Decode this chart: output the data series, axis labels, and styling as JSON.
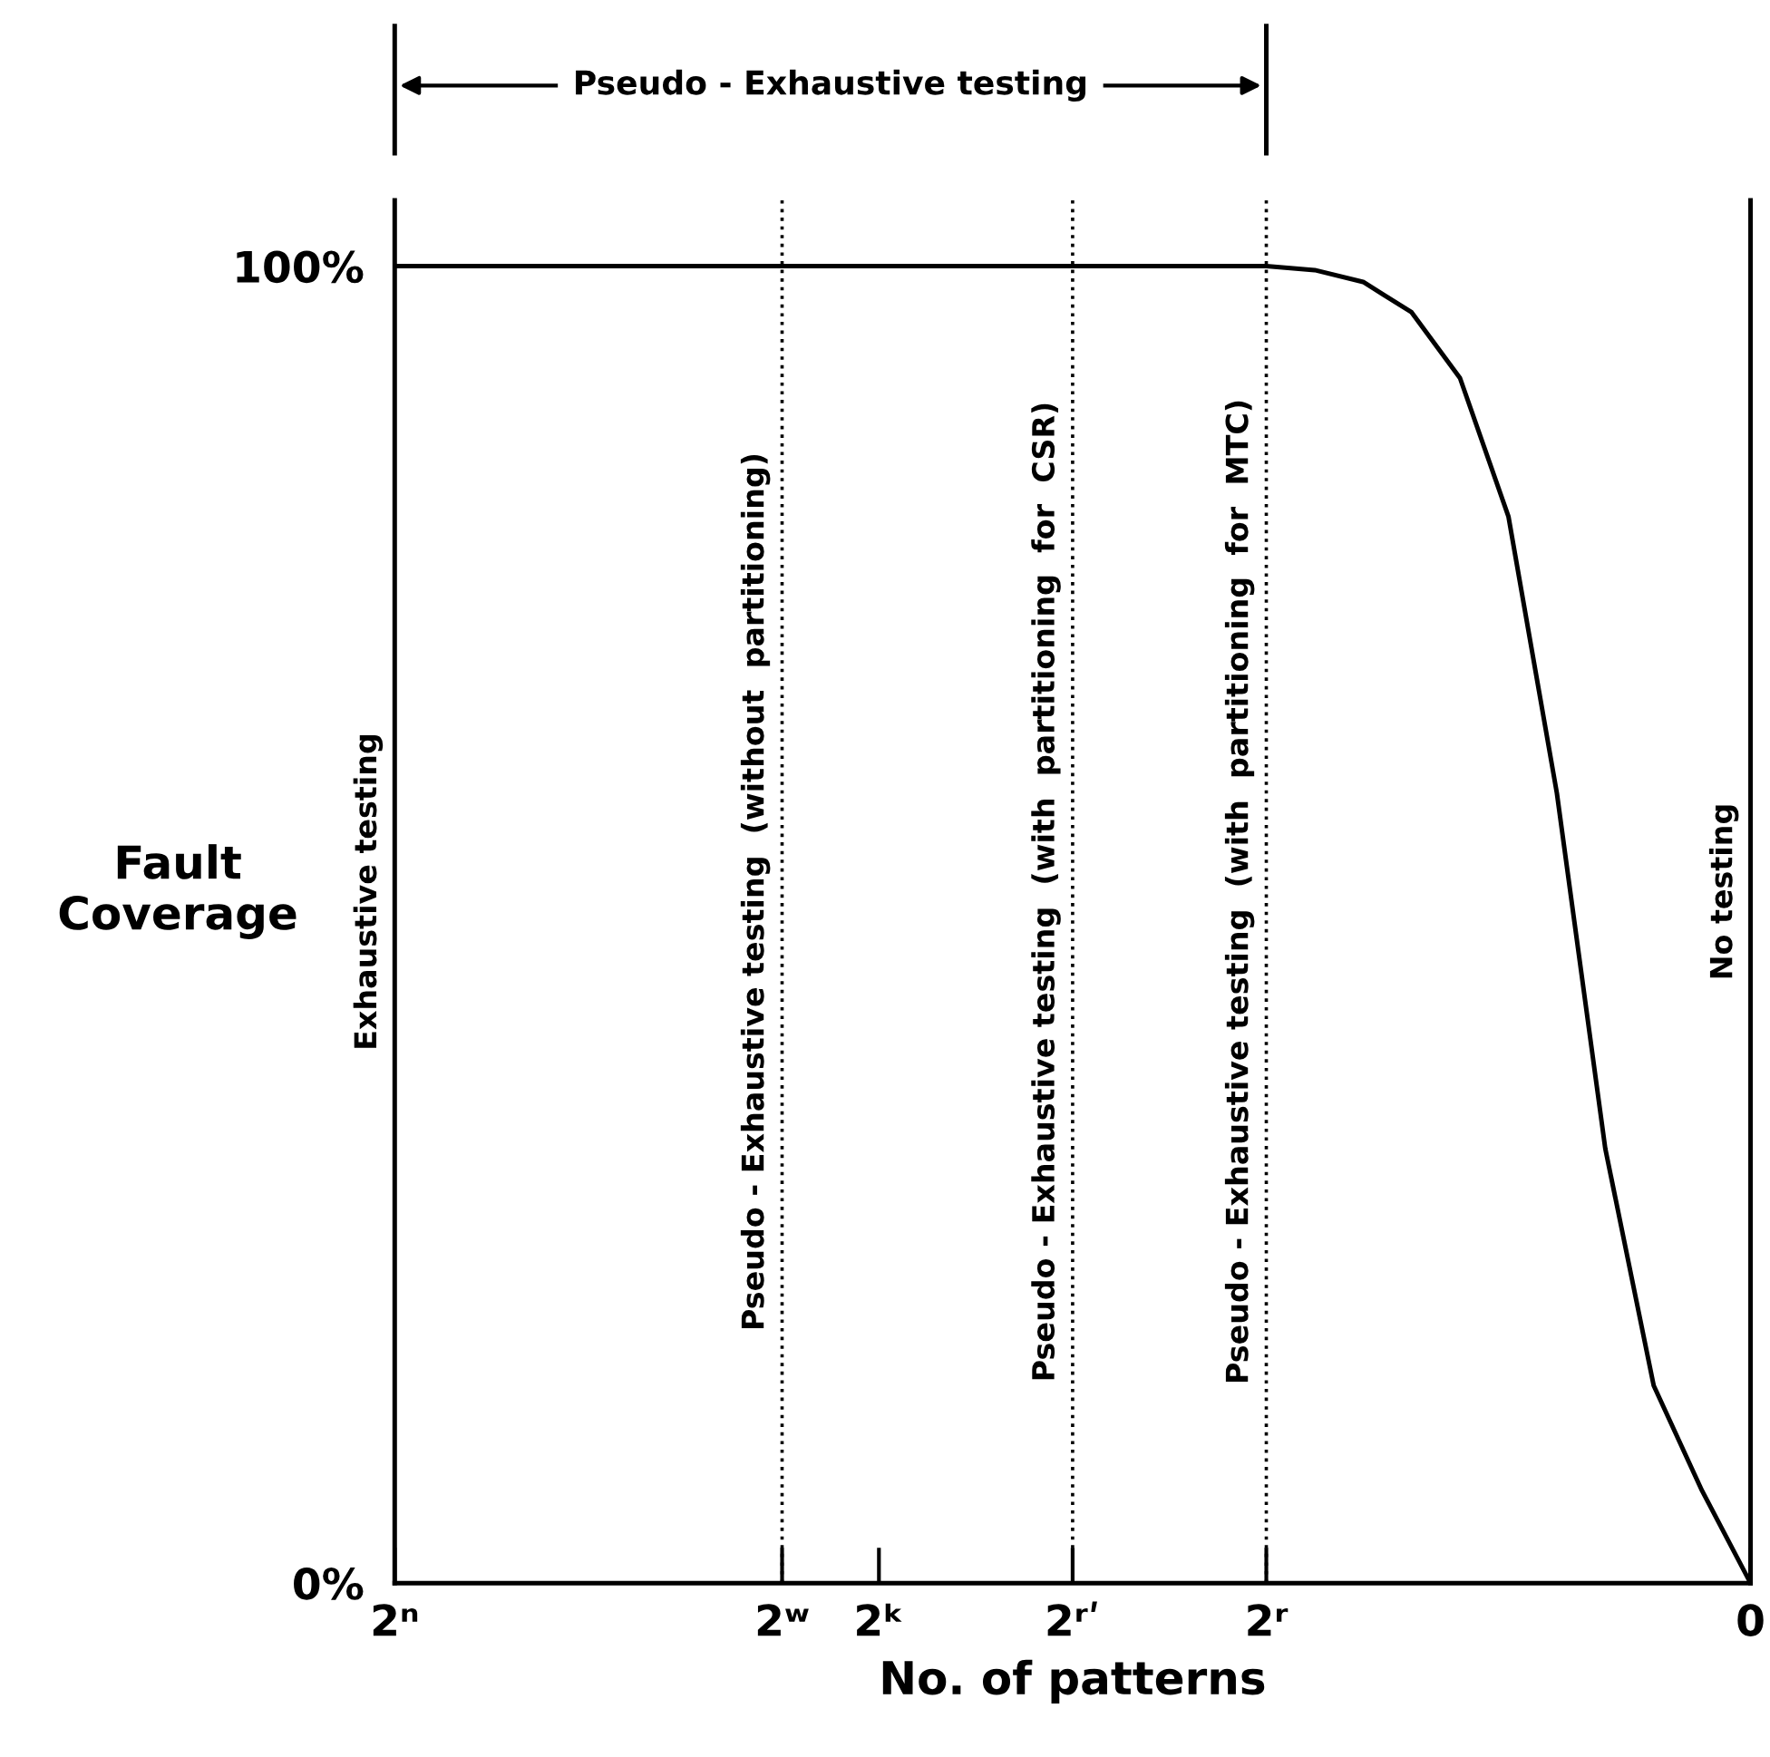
{
  "chart_data": {
    "type": "line",
    "xlabel": "No. of patterns",
    "ylabel": "Fault\nCoverage",
    "categories": [
      "2ⁿ",
      null,
      null,
      null,
      null,
      null,
      null,
      null,
      "2ʷ",
      null,
      "2ᵏ",
      null,
      null,
      null,
      "2ʳʹ",
      null,
      null,
      null,
      "2ʳ",
      null,
      null,
      null,
      null,
      null,
      null,
      null,
      null,
      null,
      "0"
    ],
    "series": [
      {
        "color": "#000000",
        "values": [
          100,
          100,
          100,
          100,
          100,
          100,
          100,
          100,
          100,
          100,
          100,
          100,
          100,
          100,
          100,
          100,
          100,
          100,
          100,
          99.7,
          98.8,
          96.5,
          91.5,
          81,
          60,
          33,
          15,
          7,
          0
        ]
      }
    ],
    "ylim": [
      0,
      105
    ],
    "yticks": [
      {
        "value": 0,
        "label": "0%"
      },
      {
        "value": 100,
        "label": "100%"
      }
    ],
    "ref_lines": [
      {
        "axis": "x",
        "value": "2ʷ",
        "label": "Pseudo - Exhaustive testing  (without  partitioning)",
        "line_style": "dotted"
      },
      {
        "axis": "x",
        "value": "2ʳʹ",
        "label": "Pseudo - Exhaustive testing  (with  partitioning  for  CSR)",
        "line_style": "dotted"
      },
      {
        "axis": "x",
        "value": "2ʳ",
        "label": "Pseudo - Exhaustive testing  (with  partitioning  for  MTC)",
        "line_style": "dotted"
      },
      {
        "axis": "x",
        "value": "0",
        "label": "No testing",
        "line_style": "solid"
      }
    ],
    "annotations": [
      "Pseudo - Exhaustive testing",
      "Exhaustive testing"
    ],
    "grid": false,
    "legend": false,
    "marker": "none",
    "line_style": "solid"
  }
}
